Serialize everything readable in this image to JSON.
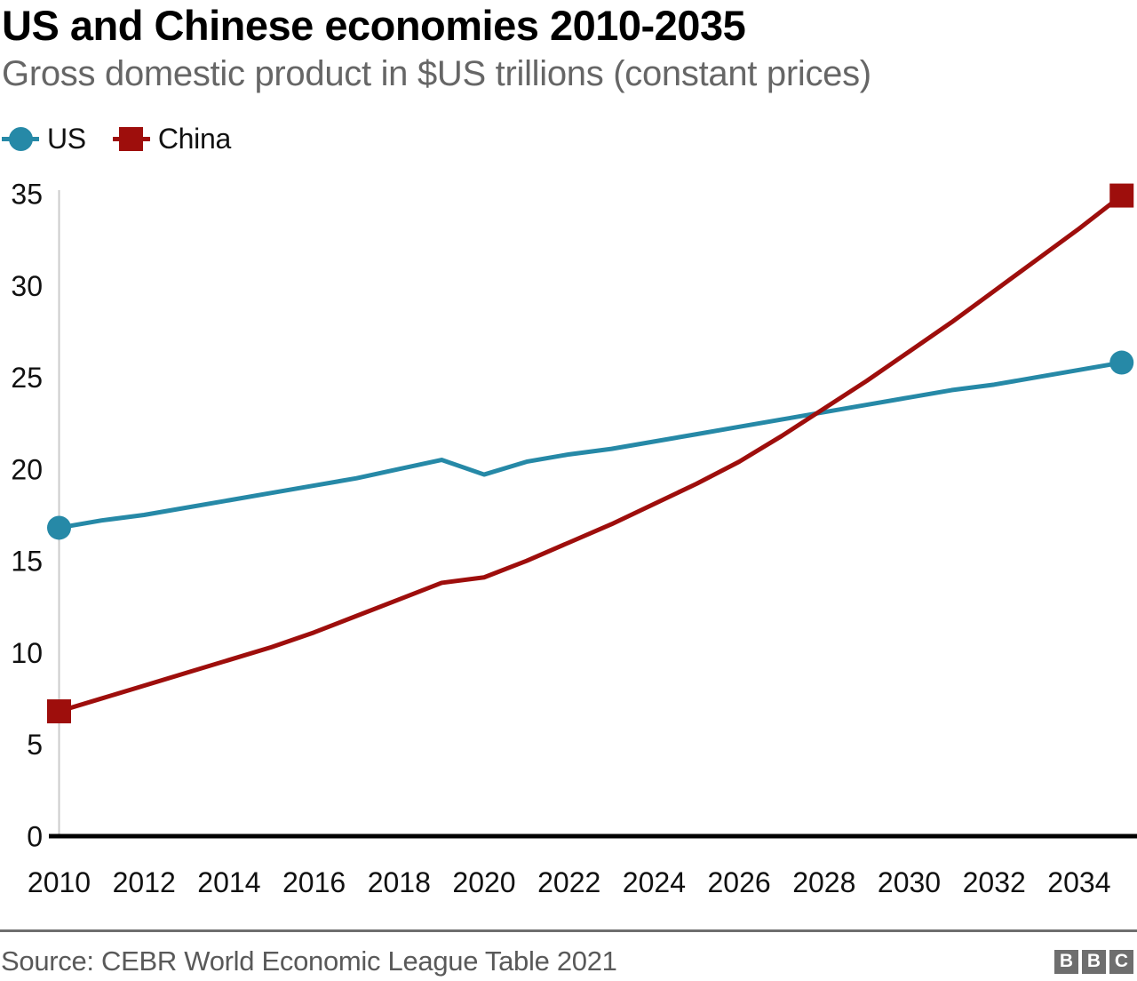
{
  "header": {
    "title": "US and Chinese economies 2010-2035",
    "subtitle": "Gross domestic product in $US trillions (constant prices)"
  },
  "legend": [
    {
      "label": "US",
      "color": "#2689A7",
      "marker": "circle"
    },
    {
      "label": "China",
      "color": "#9E0E0C",
      "marker": "square"
    }
  ],
  "chart_data": {
    "type": "line",
    "x": [
      2010,
      2011,
      2012,
      2013,
      2014,
      2015,
      2016,
      2017,
      2018,
      2019,
      2020,
      2021,
      2022,
      2023,
      2024,
      2025,
      2026,
      2027,
      2028,
      2029,
      2030,
      2031,
      2032,
      2033,
      2034,
      2035
    ],
    "series": [
      {
        "name": "US",
        "color": "#2689A7",
        "marker": "circle",
        "values": [
          16.8,
          17.2,
          17.5,
          17.9,
          18.3,
          18.7,
          19.1,
          19.5,
          20.0,
          20.5,
          19.7,
          20.4,
          20.8,
          21.1,
          21.5,
          21.9,
          22.3,
          22.7,
          23.1,
          23.5,
          23.9,
          24.3,
          24.6,
          25.0,
          25.4,
          25.8
        ]
      },
      {
        "name": "China",
        "color": "#9E0E0C",
        "marker": "square",
        "values": [
          6.8,
          7.5,
          8.2,
          8.9,
          9.6,
          10.3,
          11.1,
          12.0,
          12.9,
          13.8,
          14.1,
          15.0,
          16.0,
          17.0,
          18.1,
          19.2,
          20.4,
          21.8,
          23.3,
          24.8,
          26.4,
          28.0,
          29.7,
          31.4,
          33.1,
          34.9
        ]
      }
    ],
    "title": "US and Chinese economies 2010-2035",
    "xlabel": "",
    "ylabel": "",
    "xlim": [
      2010,
      2035
    ],
    "ylim": [
      0,
      35
    ],
    "xticks": [
      2010,
      2012,
      2014,
      2016,
      2018,
      2020,
      2022,
      2024,
      2026,
      2028,
      2030,
      2032,
      2034
    ],
    "yticks": [
      0,
      5,
      10,
      15,
      20,
      25,
      30,
      35
    ],
    "grid": false,
    "legend_position": "top-left",
    "tick_color": "#111111",
    "y_axis_line_color": "#cbcbcb",
    "x_axis_line_color": "#000000"
  },
  "footer": {
    "source": "Source: CEBR World Economic League Table 2021",
    "logo_letters": [
      "B",
      "B",
      "C"
    ]
  }
}
